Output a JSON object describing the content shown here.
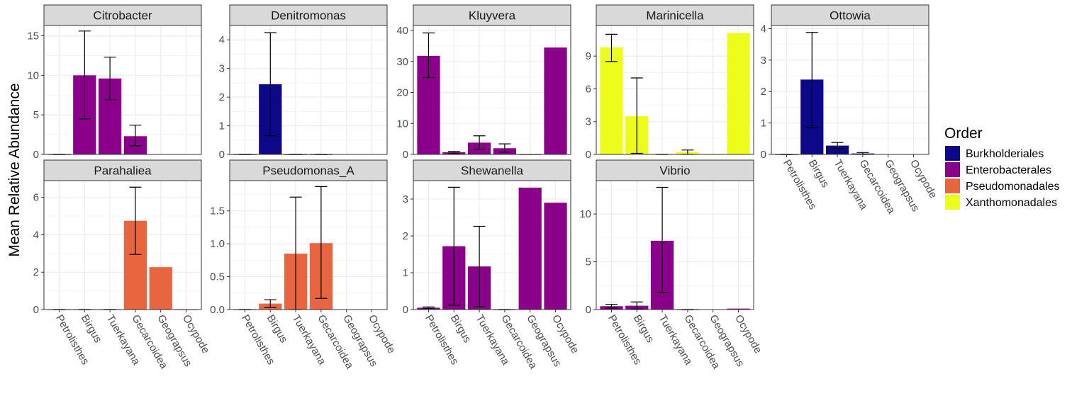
{
  "chart_data": {
    "type": "bar",
    "ylabel": "Mean Relative Abundance",
    "categories": [
      "Petrolisthes",
      "Birgus",
      "Tuerkayana",
      "Gecarcoidea",
      "Geograpsus",
      "Ocypode"
    ],
    "legend": {
      "title": "Order",
      "placement": "right",
      "items": [
        {
          "label": "Burkholderiales",
          "color": "#0d0887"
        },
        {
          "label": "Enterobacterales",
          "color": "#8b008b"
        },
        {
          "label": "Pseudomonadales",
          "color": "#e8653f"
        },
        {
          "label": "Xanthomonadales",
          "color": "#eefc1b"
        }
      ]
    },
    "grid": true,
    "panels": [
      {
        "genus": "Citrobacter",
        "order": "Enterobacterales",
        "ylim": [
          0,
          16.3
        ],
        "yticks": [
          0,
          5,
          10,
          15
        ],
        "values": [
          0,
          10.0,
          9.6,
          2.3,
          null,
          null
        ],
        "errors": [
          [
            0,
            0
          ],
          [
            4.5,
            15.6
          ],
          [
            6.9,
            12.3
          ],
          [
            1.1,
            3.7
          ],
          null,
          null
        ]
      },
      {
        "genus": "Denitromonas",
        "order": "Burkholderiales",
        "ylim": [
          0,
          4.5
        ],
        "yticks": [
          0,
          1,
          2,
          3,
          4
        ],
        "values": [
          0,
          2.45,
          0,
          0,
          null,
          null
        ],
        "errors": [
          [
            0,
            0
          ],
          [
            0.65,
            4.25
          ],
          [
            0,
            0
          ],
          [
            0,
            0
          ],
          null,
          null
        ]
      },
      {
        "genus": "Kluyvera",
        "order": "Enterobacterales",
        "ylim": [
          0,
          41.6
        ],
        "yticks": [
          0,
          10,
          20,
          30,
          40
        ],
        "values": [
          31.8,
          0.7,
          3.8,
          2.0,
          0,
          34.5
        ],
        "errors": [
          [
            24.8,
            39.2
          ],
          [
            0.4,
            1.0
          ],
          [
            1.6,
            6.0
          ],
          [
            0.7,
            3.4
          ],
          null,
          null
        ]
      },
      {
        "genus": "Marinicella",
        "order": "Xanthomonadales",
        "ylim": [
          0,
          11.8
        ],
        "yticks": [
          0,
          3,
          6,
          9
        ],
        "values": [
          9.8,
          3.5,
          0,
          0.2,
          0,
          11.1
        ],
        "errors": [
          [
            8.5,
            11.0
          ],
          [
            0.1,
            7.0
          ],
          [
            0,
            0
          ],
          [
            0,
            0.4
          ],
          null,
          null
        ]
      },
      {
        "genus": "Ottowia",
        "order": "Burkholderiales",
        "ylim": [
          0,
          4.1
        ],
        "yticks": [
          0,
          1,
          2,
          3,
          4
        ],
        "values": [
          0,
          2.38,
          0.28,
          0.03,
          null,
          null
        ],
        "errors": [
          [
            0,
            0
          ],
          [
            0.85,
            3.88
          ],
          [
            0.18,
            0.38
          ],
          [
            0.0,
            0.06
          ],
          null,
          null
        ]
      },
      {
        "genus": "Parahaliea",
        "order": "Pseudomonadales",
        "ylim": [
          0,
          6.9
        ],
        "yticks": [
          0,
          2,
          4,
          6
        ],
        "values": [
          0,
          0,
          0,
          4.75,
          2.27,
          0
        ],
        "errors": [
          [
            0,
            0
          ],
          [
            0,
            0
          ],
          [
            0,
            0
          ],
          [
            2.95,
            6.55
          ],
          null,
          null
        ]
      },
      {
        "genus": "Pseudomonas_A",
        "order": "Pseudomonadales",
        "ylim": [
          0,
          1.96
        ],
        "yticks": [
          0,
          0.5,
          1,
          1.5
        ],
        "ytick_labels": [
          "0.0",
          "0.5",
          "1.0",
          "1.5"
        ],
        "values": [
          0,
          0.09,
          0.85,
          1.01,
          null,
          null
        ],
        "errors": [
          [
            0,
            0
          ],
          [
            0.03,
            0.15
          ],
          [
            0,
            1.71
          ],
          [
            0.17,
            1.87
          ],
          null,
          null
        ]
      },
      {
        "genus": "Shewanella",
        "order": "Enterobacterales",
        "ylim": [
          0,
          3.5
        ],
        "yticks": [
          0,
          1,
          2,
          3
        ],
        "values": [
          0.05,
          1.72,
          1.17,
          0,
          3.31,
          2.9
        ],
        "errors": [
          [
            0.03,
            0.07
          ],
          [
            0.12,
            3.32
          ],
          [
            0.08,
            2.26
          ],
          [
            0,
            0
          ],
          null,
          null
        ]
      },
      {
        "genus": "Vibrio",
        "order": "Enterobacterales",
        "ylim": [
          0,
          13.5
        ],
        "yticks": [
          0,
          5,
          10
        ],
        "values": [
          0.35,
          0.4,
          7.2,
          0,
          null,
          0.1
        ],
        "errors": [
          [
            0.15,
            0.55
          ],
          [
            0.05,
            0.8
          ],
          [
            1.8,
            12.8
          ],
          [
            0,
            0
          ],
          null,
          null
        ]
      }
    ]
  }
}
